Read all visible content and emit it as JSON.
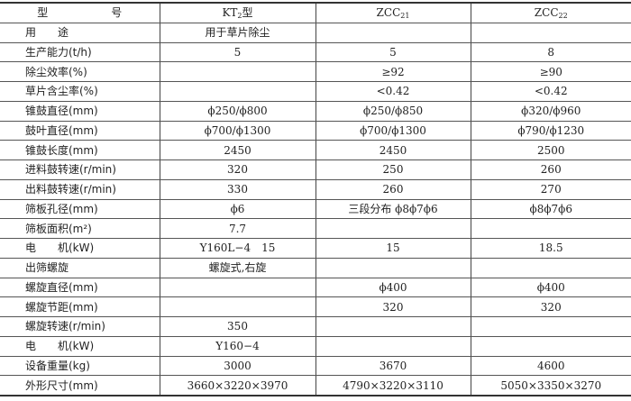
{
  "header": {
    "label_1": "型",
    "label_2": "号",
    "models": [
      {
        "base": "KT",
        "sub": "2",
        "suffix": "型"
      },
      {
        "base": "ZCC",
        "sub": "21",
        "suffix": ""
      },
      {
        "base": "ZCC",
        "sub": "22",
        "suffix": ""
      }
    ]
  },
  "rows": [
    {
      "label": "用　　途",
      "cells": [
        "用于草片除尘",
        "",
        ""
      ]
    },
    {
      "label": "生产能力(t/h)",
      "cells": [
        "5",
        "5",
        "8"
      ]
    },
    {
      "label": "除尘效率(%)",
      "cells": [
        "",
        "≥92",
        "≥90"
      ]
    },
    {
      "label": "草片含尘率(%)",
      "cells": [
        "",
        "<0.42",
        "<0.42"
      ]
    },
    {
      "label": "锥鼓直径(mm)",
      "cells": [
        "ϕ250/ϕ800",
        "ϕ250/ϕ850",
        "ϕ320/ϕ960"
      ]
    },
    {
      "label": "鼓叶直径(mm)",
      "cells": [
        "ϕ700/ϕ1300",
        "ϕ700/ϕ1300",
        "ϕ790/ϕ1230"
      ]
    },
    {
      "label": "锥鼓长度(mm)",
      "cells": [
        "2450",
        "2450",
        "2500"
      ]
    },
    {
      "label": "进料鼓转速(r/min)",
      "cells": [
        "320",
        "250",
        "260"
      ]
    },
    {
      "label": "出料鼓转速(r/min)",
      "cells": [
        "330",
        "260",
        "270"
      ]
    },
    {
      "label": "筛板孔径(mm)",
      "cells": [
        "ϕ6",
        "三段分布 ϕ8ϕ7ϕ6",
        "ϕ8ϕ7ϕ6"
      ]
    },
    {
      "label": "筛板面积(m²)",
      "cells": [
        "7.7",
        "",
        ""
      ]
    },
    {
      "label": "电　　机(kW)",
      "cells": [
        "Y160L−4　15",
        "15",
        "18.5"
      ]
    },
    {
      "label": "出筛螺旋",
      "cells": [
        "螺旋式,右旋",
        "",
        ""
      ]
    },
    {
      "label": "螺旋直径(mm)",
      "cells": [
        "",
        "ϕ400",
        "ϕ400"
      ]
    },
    {
      "label": "螺旋节距(mm)",
      "cells": [
        "",
        "320",
        "320"
      ]
    },
    {
      "label": "螺旋转速(r/min)",
      "cells": [
        "350",
        "",
        ""
      ]
    },
    {
      "label": "电　　机(kW)",
      "cells": [
        "Y160−4",
        "",
        ""
      ]
    },
    {
      "label": "设备重量(kg)",
      "cells": [
        "3000",
        "3670",
        "4600"
      ]
    },
    {
      "label": "外形尺寸(mm)",
      "cells": [
        "3660×3220×3970",
        "4790×3220×3110",
        "5050×3350×3270"
      ]
    }
  ]
}
